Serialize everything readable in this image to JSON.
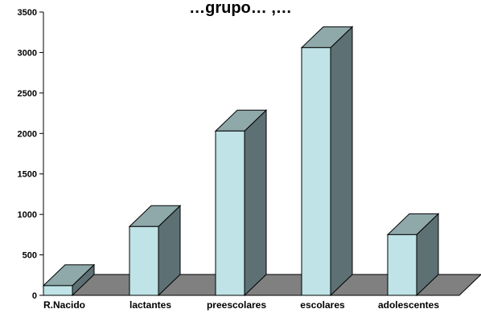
{
  "chart_data": {
    "type": "bar",
    "title": "…grupo… ,…",
    "categories": [
      "R.Nacido",
      "lactantes",
      "preescolares",
      "escolares",
      "adolescentes"
    ],
    "values": [
      120,
      850,
      2030,
      3060,
      750
    ],
    "ylim": [
      0,
      3500
    ],
    "yticks": [
      "0",
      "500",
      "1000",
      "1500",
      "2000",
      "2500",
      "3000",
      "3500"
    ],
    "grid": false,
    "legend": "none",
    "colors": {
      "bar_front": "#bfe3e6",
      "bar_top": "#8fa8aa",
      "bar_side": "#5d7073",
      "floor": "#808080",
      "axis": "#000000"
    }
  }
}
